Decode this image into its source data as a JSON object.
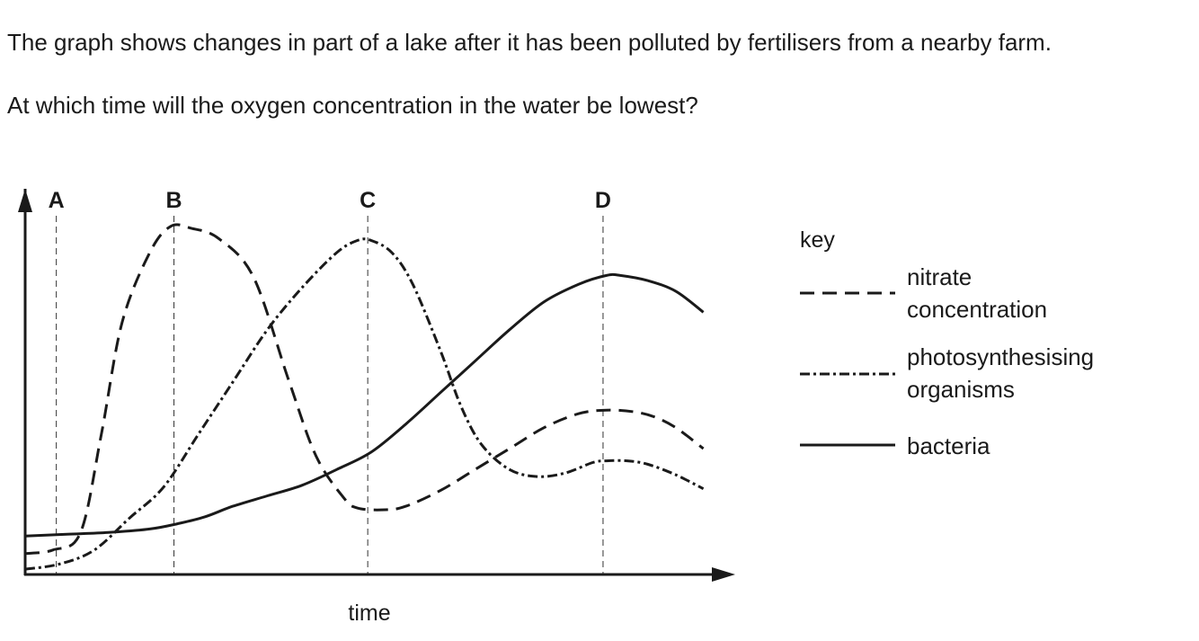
{
  "question": {
    "stem": "The graph shows changes in part of a lake after it has been polluted by fertilisers from a nearby farm.",
    "prompt": "At which time will the oxygen concentration in the water be lowest?"
  },
  "chart_data": {
    "type": "line",
    "title": "",
    "xlabel": "time",
    "ylabel": "",
    "xlim": [
      0,
      100
    ],
    "ylim": [
      0,
      100
    ],
    "grid": false,
    "legend_placement": "right",
    "legend_title": "key",
    "time_markers": [
      {
        "label": "A",
        "x": 4.5
      },
      {
        "label": "B",
        "x": 21.5
      },
      {
        "label": "C",
        "x": 49.5
      },
      {
        "label": "D",
        "x": 83.5
      }
    ],
    "series": [
      {
        "name": "nitrate concentration",
        "style": "dashed",
        "x": [
          0,
          4,
          8,
          11,
          14,
          18,
          21,
          24,
          28,
          33,
          38,
          42,
          46,
          48,
          52,
          55,
          60,
          65,
          70,
          75,
          80,
          84,
          88,
          91,
          94,
          98
        ],
        "y": [
          6,
          7,
          12,
          40,
          72,
          92,
          99.5,
          99,
          96,
          85,
          56,
          34,
          22,
          19,
          18.5,
          19.5,
          24,
          30,
          36,
          42,
          46,
          47,
          46.5,
          45,
          42,
          36
        ]
      },
      {
        "name": "photosynthesising organisms",
        "style": "dash-dot",
        "x": [
          0,
          5,
          10,
          15,
          20,
          25,
          30,
          35,
          40,
          45,
          48,
          50,
          53,
          56,
          60,
          63,
          66,
          70,
          74,
          78,
          82,
          84,
          87,
          90,
          94,
          98
        ],
        "y": [
          1.5,
          3,
          7,
          16,
          25,
          40,
          55,
          70,
          82,
          92,
          95.5,
          95.5,
          92,
          83,
          64,
          48,
          37,
          30,
          28,
          29,
          32,
          32.5,
          32.5,
          31.5,
          28.5,
          24.5
        ]
      },
      {
        "name": "bacteria",
        "style": "solid",
        "x": [
          0,
          6,
          12,
          18,
          22,
          26,
          30,
          35,
          40,
          45,
          50,
          55,
          60,
          65,
          70,
          75,
          80,
          84,
          86,
          90,
          94,
          98
        ],
        "y": [
          11,
          11.5,
          12,
          13,
          14.5,
          16.5,
          19.5,
          22.5,
          25.5,
          30,
          35,
          43,
          52,
          61,
          70,
          78,
          83,
          85.5,
          85.5,
          84,
          81,
          75
        ]
      }
    ]
  }
}
